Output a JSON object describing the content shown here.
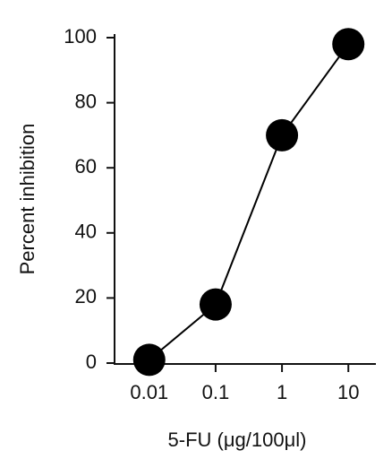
{
  "chart_data": {
    "type": "line",
    "x_label": "5-FU (μg/100μl)",
    "y_label": "Percent inhibition",
    "x": [
      0.01,
      0.1,
      1,
      10
    ],
    "series": [
      {
        "color": "#000000",
        "values": [
          1,
          18,
          70,
          98
        ]
      }
    ],
    "xscale": "log",
    "xlim": [
      0.003,
      26
    ],
    "xticks": [
      0.01,
      0.1,
      1,
      10
    ],
    "ylim": [
      0,
      100
    ],
    "yticks": [
      0,
      20,
      40,
      60,
      80,
      100
    ],
    "grid": false
  }
}
